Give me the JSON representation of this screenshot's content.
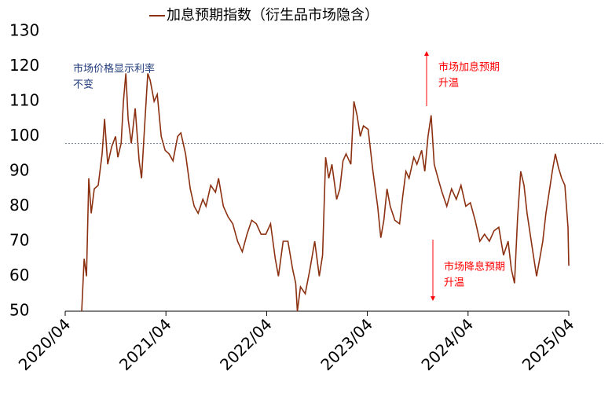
{
  "chart_data": {
    "type": "line",
    "xlim": [
      2020.25,
      2025.25
    ],
    "ylim": [
      50,
      130
    ],
    "xticks": [
      {
        "value": 2020.25,
        "label": "2020/04"
      },
      {
        "value": 2021.25,
        "label": "2021/04"
      },
      {
        "value": 2022.25,
        "label": "2022/04"
      },
      {
        "value": 2023.25,
        "label": "2023/04"
      },
      {
        "value": 2024.25,
        "label": "2024/04"
      },
      {
        "value": 2025.25,
        "label": "2025/04"
      }
    ],
    "yticks": [
      50,
      60,
      70,
      80,
      90,
      100,
      110,
      120,
      130
    ],
    "reference_line": 98,
    "x": [
      2020.414,
      2020.438,
      2020.461,
      2020.484,
      2020.508,
      2020.539,
      2020.578,
      2020.617,
      2020.641,
      2020.672,
      2020.711,
      2020.75,
      2020.773,
      2020.805,
      2020.828,
      2020.852,
      2020.875,
      2020.906,
      2020.945,
      2020.984,
      2021.008,
      2021.039,
      2021.07,
      2021.094,
      2021.133,
      2021.164,
      2021.203,
      2021.242,
      2021.281,
      2021.32,
      2021.367,
      2021.398,
      2021.445,
      2021.492,
      2021.531,
      2021.57,
      2021.617,
      2021.648,
      2021.695,
      2021.742,
      2021.773,
      2021.82,
      2021.867,
      2021.914,
      2021.961,
      2022.008,
      2022.055,
      2022.102,
      2022.148,
      2022.195,
      2022.242,
      2022.289,
      2022.336,
      2022.367,
      2022.414,
      2022.461,
      2022.508,
      2022.539,
      2022.555,
      2022.586,
      2022.633,
      2022.68,
      2022.727,
      2022.773,
      2022.805,
      2022.836,
      2022.867,
      2022.898,
      2022.945,
      2022.977,
      2023.008,
      2023.039,
      2023.086,
      2023.117,
      2023.148,
      2023.18,
      2023.211,
      2023.258,
      2023.305,
      2023.352,
      2023.383,
      2023.414,
      2023.445,
      2023.477,
      2023.523,
      2023.57,
      2023.602,
      2023.633,
      2023.664,
      2023.711,
      2023.742,
      2023.789,
      2023.82,
      2023.852,
      2023.883,
      2023.914,
      2023.961,
      2023.992,
      2024.039,
      2024.086,
      2024.133,
      2024.18,
      2024.227,
      2024.273,
      2024.32,
      2024.367,
      2024.414,
      2024.461,
      2024.508,
      2024.555,
      2024.602,
      2024.648,
      2024.68,
      2024.711,
      2024.742,
      2024.773,
      2024.805,
      2024.836,
      2024.867,
      2024.898,
      2024.93,
      2024.961,
      2024.992,
      2025.023,
      2025.055,
      2025.086,
      2025.117,
      2025.148,
      2025.18,
      2025.211,
      2025.242,
      2025.25
    ],
    "series": [
      {
        "name": "加息预期指数（衍生品市场隐含）",
        "color": "#8b3010",
        "values": [
          50,
          65,
          60,
          88,
          78,
          85,
          86,
          95,
          105,
          92,
          97,
          100,
          94,
          98,
          110,
          118,
          105,
          98,
          108,
          93,
          88,
          103,
          118,
          116,
          110,
          112,
          100,
          96,
          95,
          93,
          100,
          101,
          95,
          85,
          80,
          78,
          82,
          80,
          86,
          84,
          88,
          80,
          77,
          75,
          70,
          67,
          72,
          76,
          75,
          72,
          72,
          75,
          65,
          60,
          70,
          70,
          62,
          58,
          50,
          57,
          55,
          62,
          70,
          60,
          66,
          94,
          88,
          92,
          82,
          85,
          93,
          95,
          92,
          110,
          106,
          100,
          103,
          102,
          90,
          80,
          71,
          76,
          85,
          80,
          76,
          75,
          83,
          90,
          88,
          94,
          92,
          96,
          90,
          100,
          106,
          92,
          87,
          84,
          80,
          85,
          82,
          86,
          80,
          81,
          76,
          70,
          72,
          70,
          73,
          74,
          66,
          70,
          62,
          58,
          77,
          90,
          86,
          78,
          72,
          66,
          60,
          65,
          70,
          78,
          84,
          90,
          95,
          91,
          88,
          86,
          74,
          63
        ]
      }
    ],
    "annotations": [
      {
        "lines": [
          "市场价格显示利率",
          "不变"
        ],
        "color": "#1f3a7a"
      },
      {
        "lines": [
          "市场加息预期",
          "升温"
        ],
        "color": "#ff0000"
      },
      {
        "lines": [
          "市场降息预期",
          "升温"
        ],
        "color": "#ff0000"
      }
    ]
  }
}
